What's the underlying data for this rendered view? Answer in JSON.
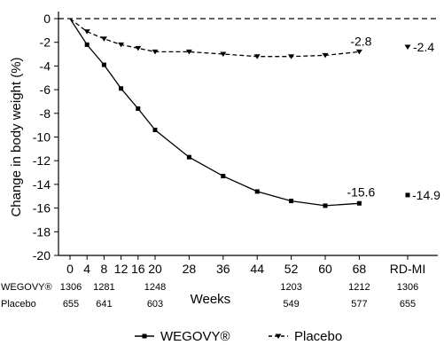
{
  "chart_data": {
    "type": "line",
    "ylabel": "Change in body weight (%)",
    "xlabel": "Weeks",
    "ylim": [
      -20,
      0
    ],
    "yticks": [
      0,
      -2,
      -4,
      -6,
      -8,
      -10,
      -12,
      -14,
      -16,
      -18,
      -20
    ],
    "xticks": [
      0,
      4,
      8,
      12,
      16,
      20,
      28,
      36,
      44,
      52,
      60,
      68
    ],
    "extra_category": "RD-MI",
    "series": [
      {
        "name": "WEGOVY®",
        "line_style": "solid",
        "marker": "square",
        "color": "#000000",
        "x": [
          0,
          4,
          8,
          12,
          16,
          20,
          28,
          36,
          44,
          52,
          60,
          68
        ],
        "y": [
          0,
          -2.2,
          -3.9,
          -5.9,
          -7.6,
          -9.4,
          -11.7,
          -13.3,
          -14.6,
          -15.4,
          -15.8,
          -15.6
        ],
        "rdmi_value": -14.9
      },
      {
        "name": "Placebo",
        "line_style": "dashed",
        "marker": "triangle-down",
        "color": "#000000",
        "x": [
          0,
          4,
          8,
          12,
          16,
          20,
          28,
          36,
          44,
          52,
          60,
          68
        ],
        "y": [
          0,
          -1.1,
          -1.7,
          -2.2,
          -2.5,
          -2.8,
          -2.8,
          -3.0,
          -3.2,
          -3.2,
          -3.1,
          -2.8
        ],
        "rdmi_value": -2.4
      }
    ],
    "annotations": [
      "-15.6",
      "-14.9",
      "-2.8",
      "-2.4"
    ],
    "reference_line": 0,
    "legend_placement": "bottom-center",
    "grid": false
  },
  "n_at_risk": {
    "rows": [
      {
        "label": "WEGOVY®",
        "counts": [
          "1306",
          "1281",
          "1248",
          "1203",
          "1212",
          "1306"
        ]
      },
      {
        "label": "Placebo",
        "counts": [
          "655",
          "641",
          "603",
          "549",
          "577",
          "655"
        ]
      }
    ],
    "positions": [
      0,
      8,
      20,
      52,
      68,
      "RD-MI"
    ]
  }
}
